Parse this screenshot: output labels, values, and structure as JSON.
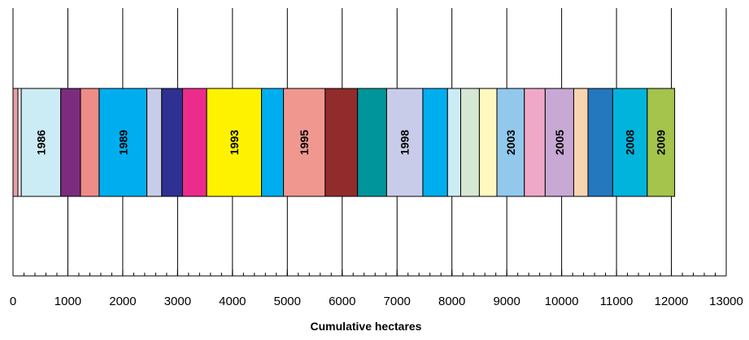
{
  "chart_data": {
    "type": "bar",
    "orientation": "horizontal-stacked",
    "xlabel": "Cumulative hectares",
    "ylabel": "",
    "title": "",
    "xlim": [
      0,
      13000
    ],
    "x_ticks": [
      0,
      1000,
      2000,
      3000,
      4000,
      5000,
      6000,
      7000,
      8000,
      9000,
      10000,
      11000,
      12000,
      13000
    ],
    "x_tick_labels": [
      "0",
      "1000",
      "2000",
      "3000",
      "4000",
      "5000",
      "6000",
      "7000",
      "8000",
      "9000",
      "10000",
      "11000",
      "12000",
      "13000"
    ],
    "minor_tick_step": 200,
    "vertical_gridlines": true,
    "legend": "none",
    "segments": [
      {
        "label": "",
        "start": 0,
        "end": 90,
        "color": "#E8A0A8"
      },
      {
        "label": "",
        "start": 90,
        "end": 150,
        "color": "#FFFFFF"
      },
      {
        "label": "1986",
        "start": 150,
        "end": 870,
        "color": "#CCECF5"
      },
      {
        "label": "",
        "start": 870,
        "end": 1230,
        "color": "#7B2C7E"
      },
      {
        "label": "",
        "start": 1230,
        "end": 1570,
        "color": "#EE8C88"
      },
      {
        "label": "1989",
        "start": 1570,
        "end": 2440,
        "color": "#00AEEF"
      },
      {
        "label": "",
        "start": 2440,
        "end": 2710,
        "color": "#C8CCE8"
      },
      {
        "label": "",
        "start": 2710,
        "end": 3090,
        "color": "#2E3192"
      },
      {
        "label": "",
        "start": 3090,
        "end": 3530,
        "color": "#EC2C8C"
      },
      {
        "label": "1993",
        "start": 3530,
        "end": 4530,
        "color": "#FFF200"
      },
      {
        "label": "",
        "start": 4530,
        "end": 4930,
        "color": "#00AEEF"
      },
      {
        "label": "1995",
        "start": 4930,
        "end": 5690,
        "color": "#F09890"
      },
      {
        "label": "",
        "start": 5690,
        "end": 6280,
        "color": "#922B2B"
      },
      {
        "label": "",
        "start": 6280,
        "end": 6810,
        "color": "#00959A"
      },
      {
        "label": "1998",
        "start": 6810,
        "end": 7470,
        "color": "#C8CCE8"
      },
      {
        "label": "",
        "start": 7470,
        "end": 7920,
        "color": "#00AEEF"
      },
      {
        "label": "",
        "start": 7920,
        "end": 8160,
        "color": "#CCECF5"
      },
      {
        "label": "",
        "start": 8160,
        "end": 8500,
        "color": "#D4E8D4"
      },
      {
        "label": "",
        "start": 8500,
        "end": 8820,
        "color": "#FFF9C0"
      },
      {
        "label": "2003",
        "start": 8820,
        "end": 9320,
        "color": "#92C8EC"
      },
      {
        "label": "",
        "start": 9320,
        "end": 9700,
        "color": "#F0A8C8"
      },
      {
        "label": "2005",
        "start": 9700,
        "end": 10220,
        "color": "#C8A8D4"
      },
      {
        "label": "",
        "start": 10220,
        "end": 10480,
        "color": "#F8D4B0"
      },
      {
        "label": "",
        "start": 10480,
        "end": 10930,
        "color": "#2478BE"
      },
      {
        "label": "2008",
        "start": 10930,
        "end": 11560,
        "color": "#00B4DC"
      },
      {
        "label": "2009",
        "start": 11560,
        "end": 12060,
        "color": "#A4C44C"
      }
    ]
  }
}
